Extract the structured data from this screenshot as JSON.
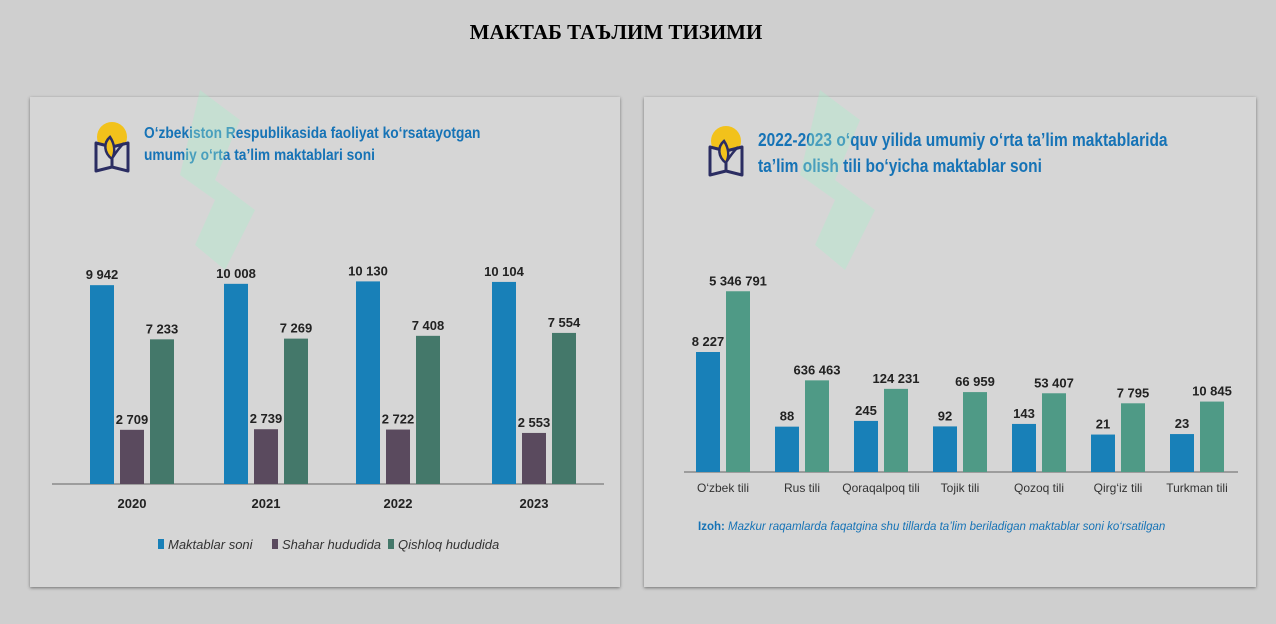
{
  "page": {
    "title": "МАКТАБ ТАЪЛИМ ТИЗИМИ"
  },
  "left_panel": {
    "title_line1": "O‘zbekiston Respublikasida faoliyat ko‘rsatayotgan",
    "title_line2": "umumiy o‘rta ta’lim maktablari soni"
  },
  "right_panel": {
    "title_line1": "2022-2023 o‘quv yilida umumiy o‘rta ta’lim maktablarida",
    "title_line2": "ta’lim olish tili bo‘yicha maktablar soni",
    "note_label": "Izoh:",
    "note_text": "Mazkur raqamlarda faqatgina shu tillarda ta’lim beriladigan maktablar soni ko‘rsatilgan"
  },
  "colors": {
    "blue": "#1880b8",
    "purple": "#5a4a5e",
    "green": "#44786a",
    "teal": "#4f9a86",
    "title_blue": "#1673b6",
    "logo_yellow": "#f2c21b",
    "logo_navy": "#2b2d62"
  },
  "chart_data": [
    {
      "type": "bar",
      "categories": [
        "2020",
        "2021",
        "2022",
        "2023"
      ],
      "series": [
        {
          "name": "Maktablar soni",
          "values": [
            9942,
            10008,
            10130,
            10104
          ],
          "labels": [
            "9 942",
            "10 008",
            "10 130",
            "10 104"
          ]
        },
        {
          "name": "Shahar hududida",
          "values": [
            2709,
            2739,
            2722,
            2553
          ],
          "labels": [
            "2 709",
            "2 739",
            "2 722",
            "2 553"
          ]
        },
        {
          "name": "Qishloq hududida",
          "values": [
            7233,
            7269,
            7408,
            7554
          ],
          "labels": [
            "7 233",
            "7 269",
            "7 408",
            "7 554"
          ]
        }
      ],
      "ylim": [
        0,
        11500
      ],
      "legend": "bottom"
    },
    {
      "type": "bar",
      "categories": [
        "O‘zbek tili",
        "Rus tili",
        "Qoraqalpoq tili",
        "Tojik tili",
        "Qozoq tili",
        "Qirg‘iz tili",
        "Turkman tili"
      ],
      "series": [
        {
          "values": [
            8227,
            88,
            245,
            92,
            143,
            21,
            23
          ],
          "labels": [
            "8 227",
            "88",
            "245",
            "92",
            "143",
            "21",
            "23"
          ]
        },
        {
          "values": [
            5346791,
            636463,
            124231,
            66959,
            53407,
            7795,
            10845
          ],
          "labels": [
            "5 346 791",
            "636 463",
            "124 231",
            "66 959",
            "53 407",
            "7 795",
            "10 845"
          ]
        }
      ],
      "scale": "non-linear (bar heights not proportional)",
      "legend": "none"
    }
  ]
}
